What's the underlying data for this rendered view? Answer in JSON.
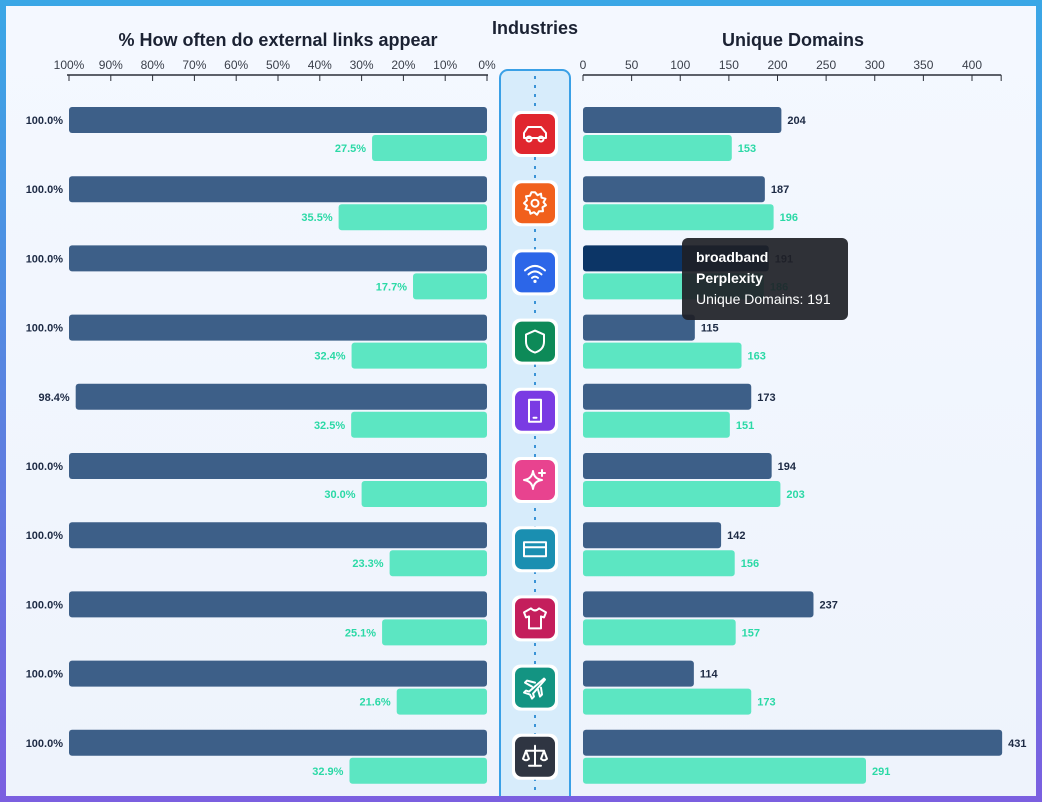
{
  "chart_data": {
    "type": "bar",
    "center_title": "Industries",
    "left_panel": {
      "title": "% How often do external links appear",
      "ticks": [
        "100%",
        "90%",
        "80%",
        "70%",
        "60%",
        "50%",
        "40%",
        "30%",
        "20%",
        "10%",
        "0%"
      ],
      "domain": [
        0,
        100
      ],
      "series": [
        {
          "name": "series-dark",
          "color": "#3d5f88",
          "values": [
            100.0,
            100.0,
            100.0,
            100.0,
            98.4,
            100.0,
            100.0,
            100.0,
            100.0,
            100.0
          ],
          "labels": [
            "100.0%",
            "100.0%",
            "100.0%",
            "100.0%",
            "98.4%",
            "100.0%",
            "100.0%",
            "100.0%",
            "100.0%",
            "100.0%"
          ]
        },
        {
          "name": "series-green",
          "color": "#5ce6c2",
          "values": [
            27.5,
            35.5,
            17.7,
            32.4,
            32.5,
            30.0,
            23.3,
            25.1,
            21.6,
            32.9
          ],
          "labels": [
            "27.5%",
            "35.5%",
            "17.7%",
            "32.4%",
            "32.5%",
            "30.0%",
            "23.3%",
            "25.1%",
            "21.6%",
            "32.9%"
          ]
        }
      ]
    },
    "right_panel": {
      "title": "Unique Domains",
      "ticks": [
        "0",
        "50",
        "100",
        "150",
        "200",
        "250",
        "300",
        "350",
        "400"
      ],
      "tick_values": [
        0,
        50,
        100,
        150,
        200,
        250,
        300,
        350,
        400
      ],
      "domain": [
        0,
        430
      ],
      "series": [
        {
          "name": "series-dark",
          "color": "#3d5f88",
          "values": [
            204,
            187,
            191,
            115,
            173,
            194,
            142,
            237,
            114,
            431
          ]
        },
        {
          "name": "series-green",
          "color": "#5ce6c2",
          "values": [
            153,
            196,
            186,
            163,
            151,
            203,
            156,
            157,
            173,
            291
          ]
        }
      ]
    },
    "categories": [
      {
        "icon": "car-icon",
        "color": "#e0262e"
      },
      {
        "icon": "gear-icon",
        "color": "#f1601c"
      },
      {
        "icon": "wifi-icon",
        "color": "#2c66e8"
      },
      {
        "icon": "shield-icon",
        "color": "#0d8a58"
      },
      {
        "icon": "phone-icon",
        "color": "#7a3be3"
      },
      {
        "icon": "sparkle-icon",
        "color": "#e8438f"
      },
      {
        "icon": "credit-card-icon",
        "color": "#1a8fb1"
      },
      {
        "icon": "shirt-icon",
        "color": "#c41e5c"
      },
      {
        "icon": "airplane-icon",
        "color": "#139482"
      },
      {
        "icon": "scales-icon",
        "color": "#2f3542"
      }
    ],
    "highlight_index": 2,
    "highlight_color": "#0c3566"
  },
  "tooltip": {
    "category": "broadband",
    "series": "Perplexity",
    "metric_label": "Unique Domains: 191"
  }
}
